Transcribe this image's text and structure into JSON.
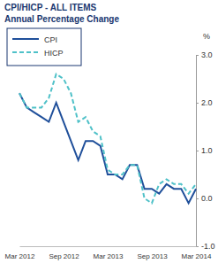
{
  "chart_data": {
    "type": "line",
    "title": "CPI/HICP - ALL ITEMS",
    "subtitle": "Annual Percentage Change",
    "y_label": "%",
    "categories": [
      "Mar 2012",
      null,
      null,
      null,
      null,
      null,
      "Sep 2012",
      null,
      null,
      null,
      null,
      null,
      "Mar 2013",
      null,
      null,
      null,
      null,
      null,
      "Sep 2013",
      null,
      null,
      null,
      null,
      null,
      "Mar 2014"
    ],
    "series": [
      {
        "name": "CPI",
        "color": "#1f4f9a",
        "line_style": "solid",
        "values": [
          2.2,
          1.9,
          1.8,
          1.7,
          1.6,
          2.0,
          1.6,
          1.2,
          0.8,
          1.2,
          1.2,
          1.1,
          0.5,
          0.5,
          0.4,
          0.7,
          0.7,
          0.2,
          0.2,
          0.1,
          0.3,
          0.2,
          0.2,
          -0.1,
          0.2
        ]
      },
      {
        "name": "HICP",
        "color": "#4fc1c8",
        "line_style": "dashed",
        "values": [
          2.2,
          1.9,
          1.9,
          1.9,
          2.1,
          2.6,
          2.5,
          2.2,
          1.6,
          1.7,
          1.4,
          1.3,
          0.6,
          0.5,
          0.5,
          0.7,
          0.7,
          0.0,
          -0.1,
          0.3,
          0.4,
          0.3,
          0.3,
          0.1,
          0.3
        ]
      }
    ],
    "ylim": [
      -1,
      3
    ],
    "yticks": [
      {
        "value": -1,
        "label": "-1.0"
      },
      {
        "value": 0,
        "label": "0.0"
      },
      {
        "value": 1,
        "label": "1.0"
      },
      {
        "value": 2,
        "label": "2.0"
      },
      {
        "value": 3,
        "label": "3.0"
      }
    ],
    "legend": "top-left"
  }
}
